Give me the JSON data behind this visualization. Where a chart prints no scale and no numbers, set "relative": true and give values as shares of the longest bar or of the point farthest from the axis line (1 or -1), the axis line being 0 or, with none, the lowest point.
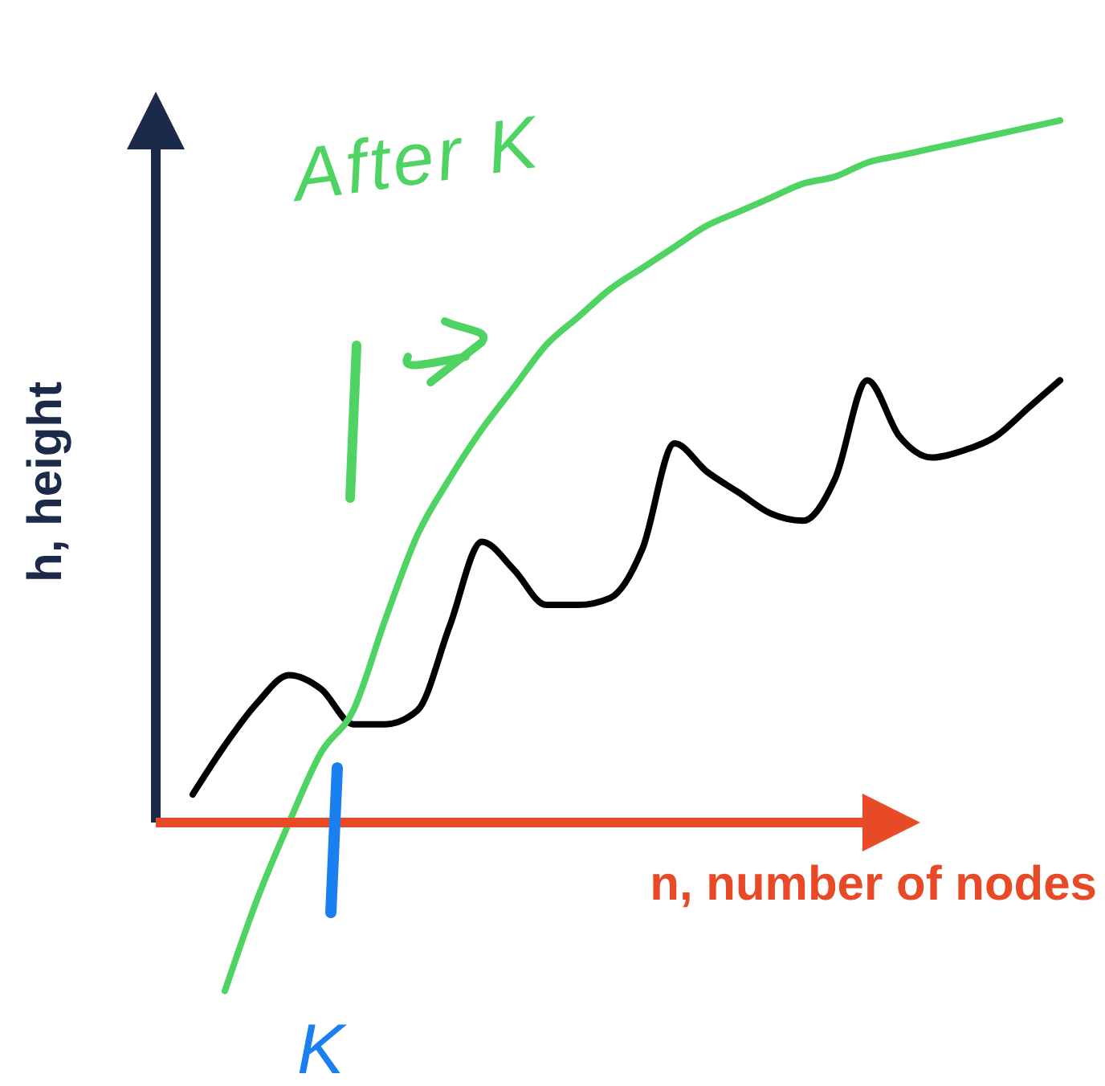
{
  "chart_data": {
    "type": "line",
    "relative": true,
    "xlabel": "n, number of nodes",
    "ylabel": "h, height",
    "categories": [
      null,
      null,
      null,
      null,
      null,
      null,
      null,
      null,
      null,
      null,
      null,
      null,
      null,
      null,
      null,
      null,
      null,
      null,
      null,
      null,
      null,
      null,
      null,
      null,
      null,
      null,
      null,
      null,
      null,
      null
    ],
    "series": [
      {
        "color": "#000000",
        "values": [
          null,
          0.04,
          0.11,
          0.17,
          0.21,
          0.19,
          0.14,
          0.14,
          0.16,
          0.28,
          0.4,
          0.36,
          0.31,
          0.31,
          0.32,
          0.39,
          0.54,
          0.5,
          0.47,
          0.44,
          0.43,
          0.49,
          0.63,
          0.55,
          0.52,
          0.53,
          0.55,
          0.59,
          0.63,
          null
        ]
      },
      {
        "color": "#4fd463",
        "values": [
          null,
          null,
          -0.24,
          -0.11,
          0.0,
          0.1,
          0.16,
          0.29,
          0.41,
          0.49,
          0.56,
          0.62,
          0.68,
          0.72,
          0.76,
          0.79,
          0.82,
          0.85,
          0.87,
          0.89,
          0.91,
          0.92,
          0.94,
          0.95,
          0.96,
          0.97,
          0.98,
          0.99,
          1.0,
          null
        ]
      }
    ],
    "annotations": [
      "After K",
      "K"
    ]
  }
}
